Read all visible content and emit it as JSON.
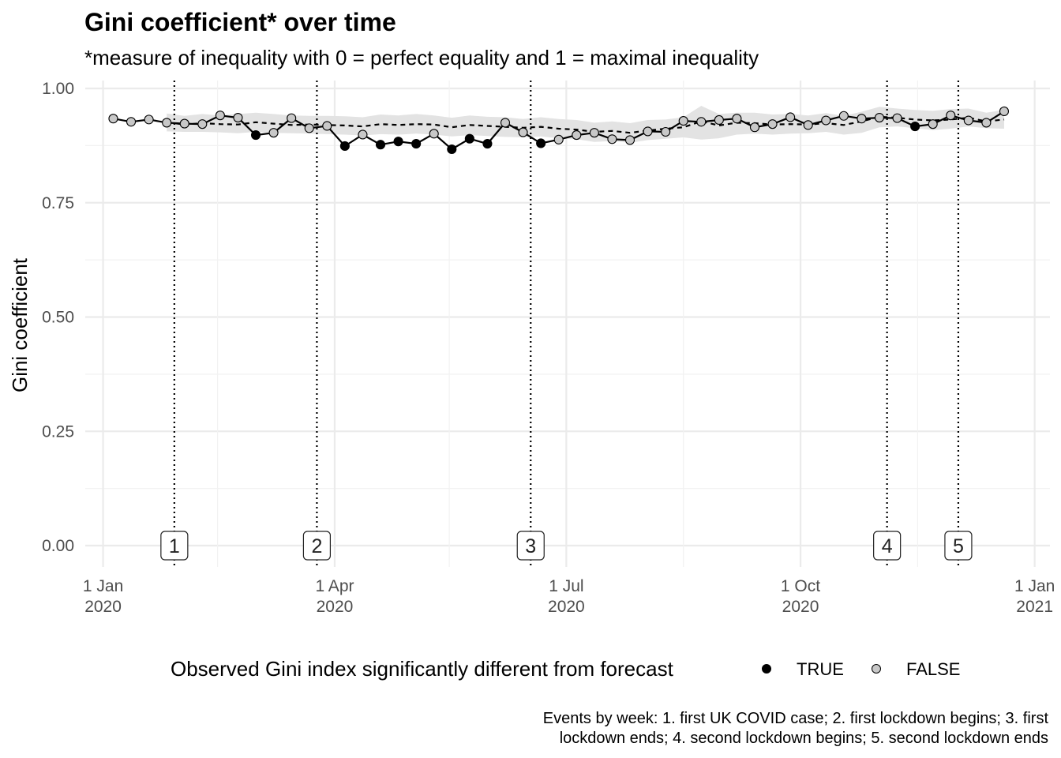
{
  "chart_data": {
    "type": "line",
    "title": "Gini coefficient* over time",
    "subtitle": "*measure of inequality with 0 = perfect equality and 1 = maximal inequality",
    "ylabel": "Gini coefficient",
    "xlabel": "",
    "ylim": [
      0,
      1
    ],
    "xlim": [
      "2019-12-25",
      "2021-01-07"
    ],
    "y_ticks": [
      "0.00",
      "0.25",
      "0.50",
      "0.75",
      "1.00"
    ],
    "y_tick_values": [
      0,
      0.25,
      0.5,
      0.75,
      1.0
    ],
    "x_ticks": [
      {
        "date": "2020-01-01",
        "label": [
          "1 Jan",
          "2020"
        ]
      },
      {
        "date": "2020-04-01",
        "label": [
          "1 Apr",
          "2020"
        ]
      },
      {
        "date": "2020-07-01",
        "label": [
          "1 Jul",
          "2020"
        ]
      },
      {
        "date": "2020-10-01",
        "label": [
          "1 Oct",
          "2020"
        ]
      },
      {
        "date": "2021-01-01",
        "label": [
          "1 Jan",
          "2021"
        ]
      }
    ],
    "grid": true,
    "legend": {
      "title": "Observed Gini index significantly different from forecast",
      "position": "bottom",
      "entries": [
        {
          "label": "TRUE",
          "color": "#000000"
        },
        {
          "label": "FALSE",
          "color": "#c8c8c8"
        }
      ]
    },
    "events": [
      {
        "label": "1",
        "date": "2020-01-29"
      },
      {
        "label": "2",
        "date": "2020-03-25"
      },
      {
        "label": "3",
        "date": "2020-06-17"
      },
      {
        "label": "4",
        "date": "2020-11-04"
      },
      {
        "label": "5",
        "date": "2020-12-02"
      }
    ],
    "caption": [
      "Events by week: 1. first UK COVID case; 2. first lockdown begins; 3. first",
      "lockdown ends; 4. second lockdown begins; 5. second lockdown ends"
    ],
    "series": [
      {
        "style": "solid-with-points",
        "dates": [
          "2020-01-05",
          "2020-01-12",
          "2020-01-19",
          "2020-01-26",
          "2020-02-02",
          "2020-02-09",
          "2020-02-16",
          "2020-02-23",
          "2020-03-01",
          "2020-03-08",
          "2020-03-15",
          "2020-03-22",
          "2020-03-29",
          "2020-04-05",
          "2020-04-12",
          "2020-04-19",
          "2020-04-26",
          "2020-05-03",
          "2020-05-10",
          "2020-05-17",
          "2020-05-24",
          "2020-05-31",
          "2020-06-07",
          "2020-06-14",
          "2020-06-21",
          "2020-06-28",
          "2020-07-05",
          "2020-07-12",
          "2020-07-19",
          "2020-07-26",
          "2020-08-02",
          "2020-08-09",
          "2020-08-16",
          "2020-08-23",
          "2020-08-30",
          "2020-09-06",
          "2020-09-13",
          "2020-09-20",
          "2020-09-27",
          "2020-10-04",
          "2020-10-11",
          "2020-10-18",
          "2020-10-25",
          "2020-11-01",
          "2020-11-08",
          "2020-11-15",
          "2020-11-22",
          "2020-11-29",
          "2020-12-06",
          "2020-12-13",
          "2020-12-20"
        ],
        "values": [
          0.934,
          0.927,
          0.932,
          0.925,
          0.923,
          0.922,
          0.941,
          0.936,
          0.898,
          0.903,
          0.935,
          0.913,
          0.918,
          0.874,
          0.899,
          0.877,
          0.884,
          0.879,
          0.901,
          0.867,
          0.89,
          0.879,
          0.925,
          0.904,
          0.88,
          0.888,
          0.898,
          0.903,
          0.889,
          0.887,
          0.906,
          0.905,
          0.929,
          0.927,
          0.931,
          0.934,
          0.915,
          0.922,
          0.937,
          0.92,
          0.93,
          0.94,
          0.934,
          0.936,
          0.935,
          0.917,
          0.922,
          0.941,
          0.93,
          0.925,
          0.95
        ],
        "significant": [
          false,
          false,
          false,
          false,
          false,
          false,
          false,
          false,
          true,
          false,
          false,
          false,
          false,
          true,
          false,
          true,
          true,
          true,
          false,
          true,
          true,
          true,
          false,
          false,
          true,
          false,
          false,
          false,
          false,
          false,
          false,
          false,
          false,
          false,
          false,
          false,
          false,
          false,
          false,
          false,
          false,
          false,
          false,
          false,
          false,
          true,
          false,
          false,
          false,
          false,
          false
        ]
      },
      {
        "style": "dashed-forecast",
        "dates": [
          "2020-01-26",
          "2020-02-02",
          "2020-02-09",
          "2020-02-16",
          "2020-02-23",
          "2020-03-01",
          "2020-03-08",
          "2020-03-15",
          "2020-03-22",
          "2020-03-29",
          "2020-04-05",
          "2020-04-12",
          "2020-04-19",
          "2020-04-26",
          "2020-05-03",
          "2020-05-10",
          "2020-05-17",
          "2020-05-24",
          "2020-05-31",
          "2020-06-07",
          "2020-06-14",
          "2020-06-21",
          "2020-06-28",
          "2020-07-05",
          "2020-07-12",
          "2020-07-19",
          "2020-07-26",
          "2020-08-02",
          "2020-08-09",
          "2020-08-16",
          "2020-08-23",
          "2020-08-30",
          "2020-09-06",
          "2020-09-13",
          "2020-09-20",
          "2020-09-27",
          "2020-10-04",
          "2020-10-11",
          "2020-10-18",
          "2020-10-25",
          "2020-11-01",
          "2020-11-08",
          "2020-11-15",
          "2020-11-22",
          "2020-11-29",
          "2020-12-06",
          "2020-12-13",
          "2020-12-20"
        ],
        "values": [
          0.926,
          0.921,
          0.924,
          0.922,
          0.921,
          0.926,
          0.923,
          0.92,
          0.921,
          0.92,
          0.919,
          0.917,
          0.922,
          0.92,
          0.922,
          0.921,
          0.915,
          0.92,
          0.918,
          0.916,
          0.914,
          0.916,
          0.912,
          0.91,
          0.905,
          0.907,
          0.903,
          0.908,
          0.912,
          0.915,
          0.928,
          0.919,
          0.925,
          0.924,
          0.921,
          0.922,
          0.921,
          0.924,
          0.92,
          0.928,
          0.938,
          0.936,
          0.932,
          0.93,
          0.932,
          0.936,
          0.928,
          0.932
        ],
        "band_lower": [
          0.906,
          0.905,
          0.905,
          0.904,
          0.902,
          0.905,
          0.903,
          0.902,
          0.901,
          0.9,
          0.899,
          0.897,
          0.9,
          0.899,
          0.901,
          0.899,
          0.895,
          0.898,
          0.896,
          0.894,
          0.893,
          0.895,
          0.891,
          0.889,
          0.883,
          0.885,
          0.881,
          0.887,
          0.89,
          0.893,
          0.888,
          0.891,
          0.899,
          0.901,
          0.899,
          0.901,
          0.902,
          0.905,
          0.899,
          0.903,
          0.915,
          0.917,
          0.913,
          0.909,
          0.912,
          0.917,
          0.913,
          0.912
        ],
        "band_upper": [
          0.945,
          0.94,
          0.944,
          0.941,
          0.944,
          0.947,
          0.944,
          0.941,
          0.94,
          0.94,
          0.939,
          0.937,
          0.943,
          0.941,
          0.944,
          0.941,
          0.936,
          0.941,
          0.938,
          0.937,
          0.933,
          0.937,
          0.933,
          0.931,
          0.925,
          0.928,
          0.924,
          0.931,
          0.932,
          0.937,
          0.962,
          0.944,
          0.947,
          0.947,
          0.943,
          0.944,
          0.941,
          0.946,
          0.94,
          0.949,
          0.96,
          0.956,
          0.953,
          0.951,
          0.955,
          0.956,
          0.947,
          0.953
        ]
      }
    ]
  }
}
